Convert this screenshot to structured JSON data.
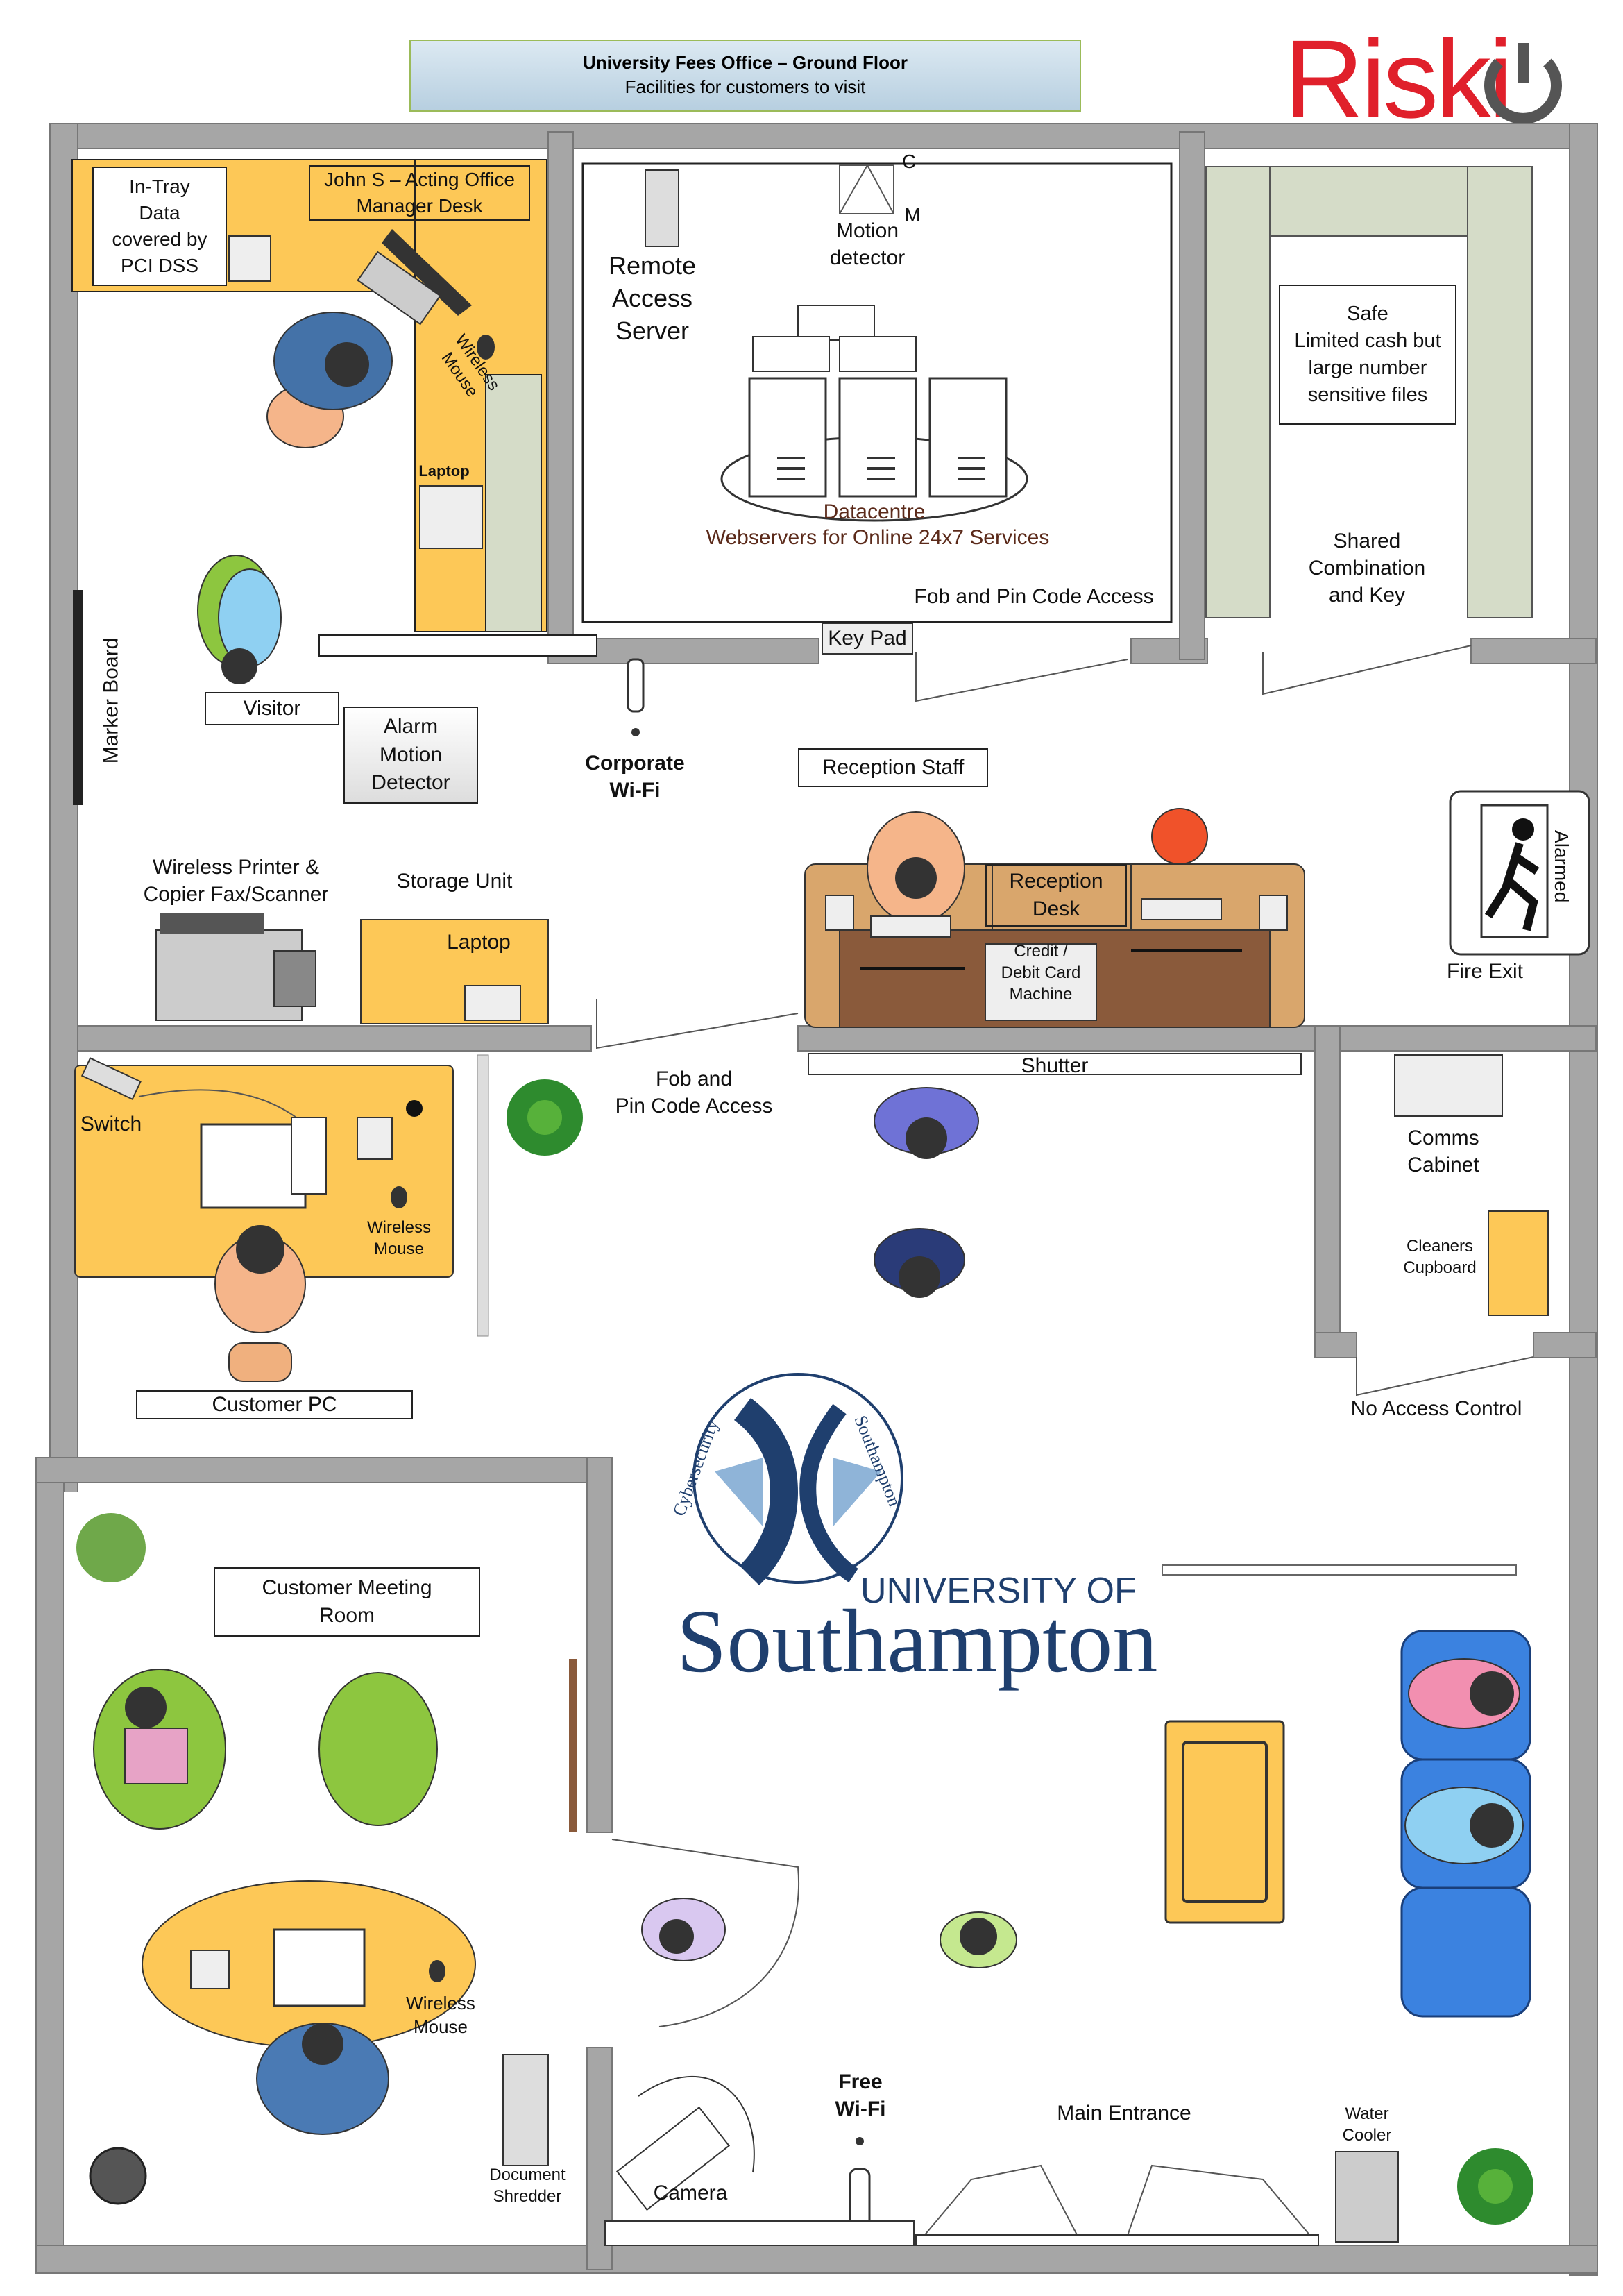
{
  "title": {
    "line1": "University Fees Office – Ground Floor",
    "line2": "Facilities for customers to visit"
  },
  "logo": {
    "text": "Riski",
    "color": "#e0202b"
  },
  "labels": {
    "in_tray": "In-Tray\nData\ncovered by\nPCI DSS",
    "manager_desk": "John S – Acting Office\nManager Desk",
    "wireless_mouse_rot": "Wireless\nMouse",
    "laptop_small": "Laptop",
    "remote_access": "Remote\nAccess\nServer",
    "cm_c": "C",
    "cm_m": "M",
    "motion_detector": "Motion\ndetector",
    "datacentre": "Datacentre",
    "webservers": "Webservers for Online 24x7 Services",
    "fob_pin_top": "Fob and Pin Code Access",
    "key_pad": "Key Pad",
    "safe": "Safe\nLimited cash but\nlarge number\nsensitive files",
    "shared_combo": "Shared\nCombination\nand Key",
    "marker_board": "Marker Board",
    "visitor": "Visitor",
    "alarm_motion": "Alarm\nMotion\nDetector",
    "corporate_wifi": "Corporate\nWi-Fi",
    "reception_staff": "Reception Staff",
    "reception_desk": "Reception\nDesk",
    "card_machine": "Credit /\nDebit Card\nMachine",
    "alarmed": "Alarmed",
    "fire_exit": "Fire Exit",
    "printer": "Wireless Printer &\nCopier Fax/Scanner",
    "storage_unit": "Storage Unit",
    "laptop_storage": "Laptop",
    "switch": "Switch",
    "wireless_mouse_pc": "Wireless\nMouse",
    "fob_pin_mid": "Fob and\nPin Code Access",
    "shutter": "Shutter",
    "comms_cabinet": "Comms\nCabinet",
    "cleaners": "Cleaners\nCupboard",
    "customer_pc": "Customer PC",
    "no_access": "No Access Control",
    "meeting_room": "Customer Meeting\nRoom",
    "wireless_mouse_meeting": "Wireless\nMouse",
    "document_shredder": "Document\nShredder",
    "camera": "Camera",
    "free_wifi": "Free\nWi-Fi",
    "main_entrance": "Main Entrance",
    "water_cooler": "Water\nCooler"
  },
  "university": {
    "ring_text_left": "Cybersecurity",
    "ring_text_right": "Southampton",
    "line1": "UNIVERSITY OF",
    "line2": "Southampton"
  },
  "colors": {
    "wall": "#a6a6a6",
    "desk_yellow": "#fdc857",
    "desk_brown": "#d9a66c",
    "chair_green": "#8dc63f",
    "chair_blue": "#3b82e0",
    "storage_green": "#d5dcc8",
    "accent_red": "#e0202b",
    "uni_blue": "#1f3f6e"
  }
}
